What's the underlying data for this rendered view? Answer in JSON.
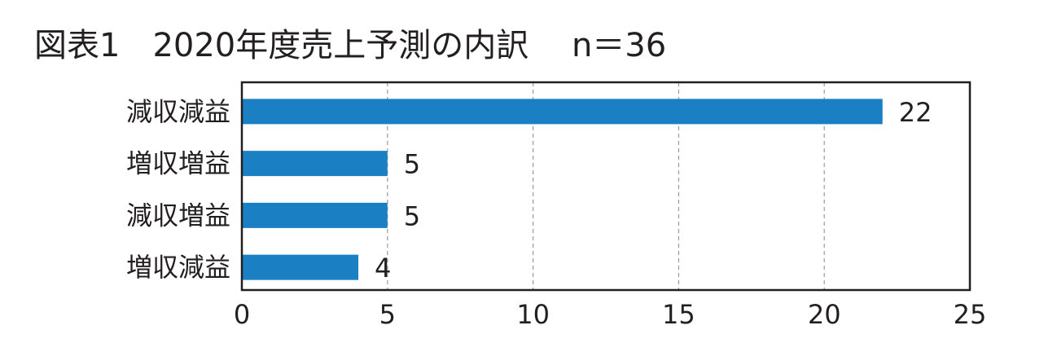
{
  "title": "図表1　2020年度売上予測の内訳　 n＝36",
  "chart_data": {
    "type": "bar",
    "orientation": "horizontal",
    "categories": [
      "減収減益",
      "増収増益",
      "減収増益",
      "増収減益"
    ],
    "values": [
      22,
      5,
      5,
      4
    ],
    "xlim": [
      0,
      25
    ],
    "xticks": [
      0,
      5,
      10,
      15,
      20,
      25
    ],
    "grid": true,
    "bar_color": "#1b7fc4"
  }
}
